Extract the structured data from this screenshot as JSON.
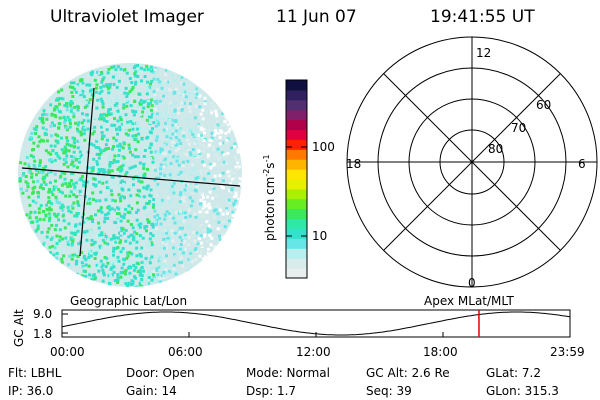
{
  "header": {
    "instrument": "Ultraviolet Imager",
    "date": "11 Jun 07",
    "time": "19:41:55 UT"
  },
  "colorbar": {
    "unit_label": "photon cm",
    "unit_exp1": "-2",
    "unit_s": "s",
    "unit_exp2": "-1",
    "tick_100": "100",
    "tick_10": "10",
    "colors": [
      "#e8eeee",
      "#d8ecec",
      "#b8eeee",
      "#66e6e6",
      "#33e2cc",
      "#2ee8a8",
      "#3ae85a",
      "#66ee22",
      "#aaf000",
      "#e6f000",
      "#ffe600",
      "#ffb400",
      "#ff7800",
      "#ff2000",
      "#e00040",
      "#b0004a",
      "#80206a",
      "#503070",
      "#302060",
      "#101040"
    ]
  },
  "polar": {
    "label_12": "12",
    "label_18": "18",
    "label_6": "6",
    "label_0": "0",
    "label_60": "60",
    "label_70": "70",
    "label_80": "80"
  },
  "timeline": {
    "left_label": "Geographic Lat/Lon",
    "right_label": "Apex MLat/MLT",
    "axis_title": "GC Alt",
    "y_max": "9.0",
    "y_min": "1.8",
    "ticks": [
      "00:00",
      "06:00",
      "12:00",
      "18:00",
      "23:59"
    ],
    "current_time_fraction": 0.8208
  },
  "info": {
    "flt": "Flt: LBHL",
    "door": "Door: Open",
    "mode": "Mode: Normal",
    "gcalt": "GC Alt: 2.6 Re",
    "glat": "GLat:    7.2",
    "ip": "IP: 36.0",
    "gain": "Gain: 14",
    "dsp": "Dsp:      1.7",
    "seq": "Seq: 39",
    "glon": "GLon: 315.3"
  }
}
